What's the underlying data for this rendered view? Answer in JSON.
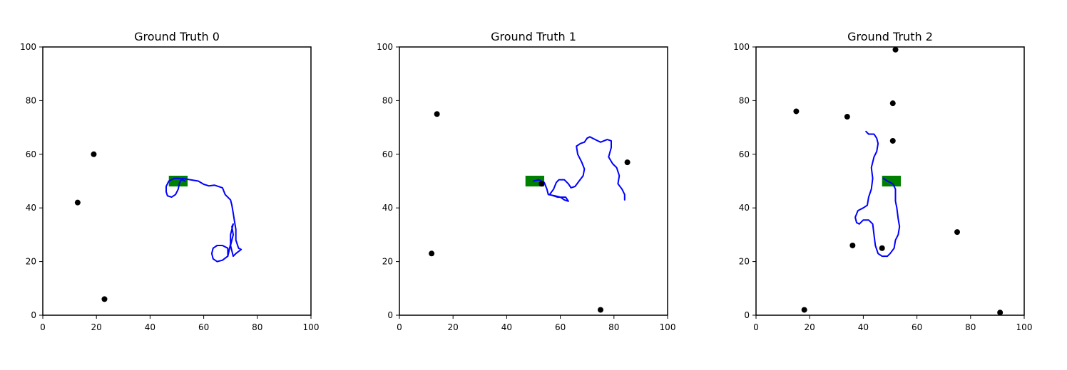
{
  "colors": {
    "trajectory": "#0000ff",
    "marker": "#000000",
    "goal": "#008000",
    "axes": "#000000",
    "background": "#ffffff"
  },
  "chart_data": [
    {
      "type": "line",
      "title": "Ground Truth 0",
      "xlabel": "",
      "ylabel": "",
      "xlim": [
        0,
        100
      ],
      "ylim": [
        0,
        100
      ],
      "xticks": [
        0,
        20,
        40,
        60,
        80,
        100
      ],
      "yticks": [
        0,
        20,
        40,
        60,
        80,
        100
      ],
      "tick_labels": [
        "0",
        "20",
        "40",
        "60",
        "80",
        "100"
      ],
      "grid": false,
      "goal_rect": {
        "x": [
          47,
          54
        ],
        "y": [
          48,
          52
        ]
      },
      "points": [
        [
          19,
          60
        ],
        [
          13,
          42
        ],
        [
          23,
          6
        ]
      ],
      "trajectory": [
        [
          53,
          50
        ],
        [
          51,
          51
        ],
        [
          49,
          51
        ],
        [
          47,
          50
        ],
        [
          46,
          48
        ],
        [
          46,
          46
        ],
        [
          46.5,
          44.5
        ],
        [
          48,
          44
        ],
        [
          49.5,
          45
        ],
        [
          50.5,
          47
        ],
        [
          51,
          49.5
        ],
        [
          52,
          51
        ],
        [
          55,
          50.5
        ],
        [
          58,
          50
        ],
        [
          60,
          48.8
        ],
        [
          62,
          48.2
        ],
        [
          64,
          48.5
        ],
        [
          67,
          47.5
        ],
        [
          68,
          45
        ],
        [
          70,
          43
        ],
        [
          70.5,
          41
        ],
        [
          71,
          38
        ],
        [
          71.5,
          35
        ],
        [
          72,
          32
        ],
        [
          72,
          28
        ],
        [
          73,
          25
        ],
        [
          74,
          24.5
        ],
        [
          72,
          23
        ],
        [
          71,
          22
        ],
        [
          70,
          26
        ],
        [
          71,
          30
        ],
        [
          70.5,
          33
        ],
        [
          71,
          34
        ],
        [
          70,
          30
        ],
        [
          70,
          26.5
        ],
        [
          69,
          22
        ],
        [
          67,
          20.5
        ],
        [
          65,
          20
        ],
        [
          63.5,
          21
        ],
        [
          63,
          23
        ],
        [
          63.5,
          25
        ],
        [
          65,
          26
        ],
        [
          67,
          26
        ],
        [
          69,
          25
        ],
        [
          69,
          22
        ]
      ]
    },
    {
      "type": "line",
      "title": "Ground Truth 1",
      "xlabel": "",
      "ylabel": "",
      "xlim": [
        0,
        100
      ],
      "ylim": [
        0,
        100
      ],
      "xticks": [
        0,
        20,
        40,
        60,
        80,
        100
      ],
      "yticks": [
        0,
        20,
        40,
        60,
        80,
        100
      ],
      "tick_labels": [
        "0",
        "20",
        "40",
        "60",
        "80",
        "100"
      ],
      "grid": false,
      "goal_rect": {
        "x": [
          47,
          54
        ],
        "y": [
          48,
          52
        ]
      },
      "points": [
        [
          14,
          75
        ],
        [
          12,
          23
        ],
        [
          53,
          49
        ],
        [
          85,
          57
        ],
        [
          75,
          2
        ]
      ],
      "trajectory": [
        [
          50,
          50
        ],
        [
          52,
          50.5
        ],
        [
          54,
          49.5
        ],
        [
          55,
          47
        ],
        [
          55.5,
          45
        ],
        [
          58,
          44.5
        ],
        [
          60,
          44
        ],
        [
          61.5,
          43
        ],
        [
          63,
          42.5
        ],
        [
          62,
          44
        ],
        [
          59,
          44
        ],
        [
          56,
          45
        ],
        [
          57.5,
          47
        ],
        [
          58.5,
          49.5
        ],
        [
          59.5,
          50.5
        ],
        [
          61.5,
          50.5
        ],
        [
          63,
          49
        ],
        [
          64,
          47.5
        ],
        [
          65.5,
          48
        ],
        [
          67,
          50
        ],
        [
          68.5,
          52
        ],
        [
          69,
          54.5
        ],
        [
          68,
          57
        ],
        [
          66.5,
          60
        ],
        [
          66,
          63
        ],
        [
          67.5,
          64
        ],
        [
          69,
          64.5
        ],
        [
          70,
          66
        ],
        [
          71,
          66.5
        ],
        [
          73,
          65.5
        ],
        [
          75,
          64.5
        ],
        [
          77.5,
          65.5
        ],
        [
          79,
          65
        ],
        [
          79,
          62.5
        ],
        [
          78,
          59
        ],
        [
          79.5,
          56.5
        ],
        [
          81,
          55
        ],
        [
          82,
          52
        ],
        [
          81.5,
          49
        ],
        [
          83,
          47
        ],
        [
          84,
          45
        ],
        [
          84,
          43
        ]
      ]
    },
    {
      "type": "line",
      "title": "Ground Truth 2",
      "xlabel": "",
      "ylabel": "",
      "xlim": [
        0,
        100
      ],
      "ylim": [
        0,
        100
      ],
      "xticks": [
        0,
        20,
        40,
        60,
        80,
        100
      ],
      "yticks": [
        0,
        20,
        40,
        60,
        80,
        100
      ],
      "tick_labels": [
        "0",
        "20",
        "40",
        "60",
        "80",
        "100"
      ],
      "grid": false,
      "goal_rect": {
        "x": [
          47,
          54
        ],
        "y": [
          48,
          52
        ]
      },
      "points": [
        [
          52,
          99
        ],
        [
          15,
          76
        ],
        [
          34,
          74
        ],
        [
          51,
          79
        ],
        [
          51,
          65
        ],
        [
          75,
          31
        ],
        [
          36,
          26
        ],
        [
          47,
          25
        ],
        [
          18,
          2
        ],
        [
          91,
          1
        ]
      ],
      "trajectory": [
        [
          41,
          68.5
        ],
        [
          42,
          67.5
        ],
        [
          44,
          67.5
        ],
        [
          45,
          66
        ],
        [
          45.5,
          64
        ],
        [
          45,
          61
        ],
        [
          44,
          59
        ],
        [
          43,
          55
        ],
        [
          43.5,
          51
        ],
        [
          43,
          47
        ],
        [
          42,
          44
        ],
        [
          41.5,
          41
        ],
        [
          40,
          40
        ],
        [
          38,
          39
        ],
        [
          37,
          36.5
        ],
        [
          37.5,
          34.5
        ],
        [
          38.5,
          34
        ],
        [
          40,
          35.5
        ],
        [
          42,
          35.5
        ],
        [
          43.5,
          34
        ],
        [
          44,
          30
        ],
        [
          44.5,
          26
        ],
        [
          45.5,
          23
        ],
        [
          47,
          22
        ],
        [
          49,
          22
        ],
        [
          50,
          23
        ],
        [
          51.5,
          25
        ],
        [
          52,
          28
        ],
        [
          53,
          30
        ],
        [
          53.5,
          33
        ],
        [
          53,
          36
        ],
        [
          52.5,
          40
        ],
        [
          52,
          42.5
        ],
        [
          52,
          45
        ],
        [
          52,
          47
        ],
        [
          51,
          49
        ],
        [
          49,
          50
        ],
        [
          47.5,
          51
        ]
      ]
    }
  ]
}
